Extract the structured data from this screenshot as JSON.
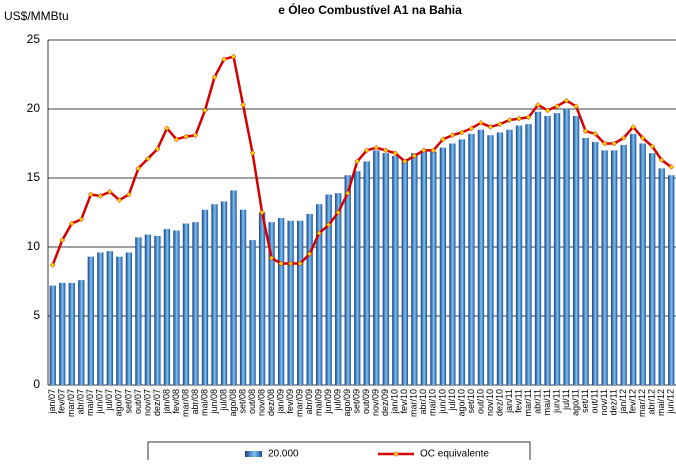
{
  "chart_data": {
    "type": "bar",
    "title": "e Óleo Combustível A1 na Bahia",
    "y_label": "US$/MMBtu",
    "categories": [
      "jan/07",
      "fev/07",
      "mar/07",
      "abr/07",
      "mai/07",
      "jun/07",
      "jul/07",
      "ago/07",
      "set/07",
      "out/07",
      "nov/07",
      "dez/07",
      "jan/08",
      "fev/08",
      "mar/08",
      "abr/08",
      "mai/08",
      "jun/08",
      "jul/08",
      "ago/08",
      "set/08",
      "out/08",
      "nov/08",
      "dez/08",
      "jan/09",
      "fev/09",
      "mar/09",
      "abr/09",
      "mai/09",
      "jun/09",
      "jul/09",
      "ago/09",
      "set/09",
      "out/09",
      "nov/09",
      "dez/09",
      "jan/10",
      "fev/10",
      "mar/10",
      "abr/10",
      "mai/10",
      "jun/10",
      "jul/10",
      "ago/10",
      "set/10",
      "out/10",
      "nov/10",
      "dez/10",
      "jan/11",
      "fev/11",
      "mar/11",
      "abr/11",
      "mai/11",
      "jun/11",
      "jul/11",
      "ago/11",
      "set/11",
      "out/11",
      "nov/11",
      "dez/11",
      "jan/12",
      "fev/12",
      "mar/12",
      "abr/12",
      "mai/12",
      "jun/12"
    ],
    "series": [
      {
        "name": "20.000",
        "type": "bar",
        "color": "#1f56a3",
        "values": [
          7.2,
          7.4,
          7.4,
          7.6,
          9.3,
          9.6,
          9.7,
          9.3,
          9.6,
          10.7,
          10.9,
          10.8,
          11.3,
          11.2,
          11.7,
          11.8,
          12.7,
          13.1,
          13.3,
          14.1,
          12.7,
          10.5,
          12.5,
          11.8,
          12.1,
          11.9,
          11.9,
          12.4,
          13.1,
          13.8,
          13.9,
          15.2,
          15.5,
          16.2,
          17.0,
          16.8,
          16.6,
          16.3,
          16.8,
          17.0,
          16.9,
          17.2,
          17.5,
          17.8,
          18.2,
          18.5,
          18.1,
          18.3,
          18.5,
          18.8,
          18.9,
          19.8,
          19.5,
          19.7,
          20.0,
          19.5,
          17.9,
          17.6,
          17.0,
          17.0,
          17.4,
          18.2,
          17.5,
          16.8,
          15.7,
          15.2
        ]
      },
      {
        "name": "OC equivalente",
        "type": "line",
        "color": "#d40000",
        "marker_color": "#ffd700",
        "values": [
          8.7,
          10.5,
          11.7,
          12.0,
          13.8,
          13.7,
          14.0,
          13.4,
          13.8,
          15.7,
          16.4,
          17.1,
          18.6,
          17.8,
          18.0,
          18.1,
          19.9,
          22.3,
          23.6,
          23.8,
          20.3,
          16.8,
          12.5,
          9.2,
          8.8,
          8.8,
          8.8,
          9.5,
          11.0,
          11.6,
          12.5,
          13.9,
          16.2,
          17.0,
          17.2,
          17.0,
          16.8,
          16.2,
          16.6,
          17.0,
          17.0,
          17.8,
          18.1,
          18.3,
          18.6,
          19.0,
          18.7,
          18.9,
          19.2,
          19.3,
          19.4,
          20.3,
          19.9,
          20.2,
          20.6,
          20.2,
          18.4,
          18.2,
          17.5,
          17.5,
          17.9,
          18.7,
          17.9,
          17.3,
          16.3,
          15.8
        ]
      }
    ],
    "ylim": [
      0,
      25
    ],
    "yticks": [
      0,
      5,
      10,
      15,
      20,
      25
    ],
    "grid": true
  }
}
